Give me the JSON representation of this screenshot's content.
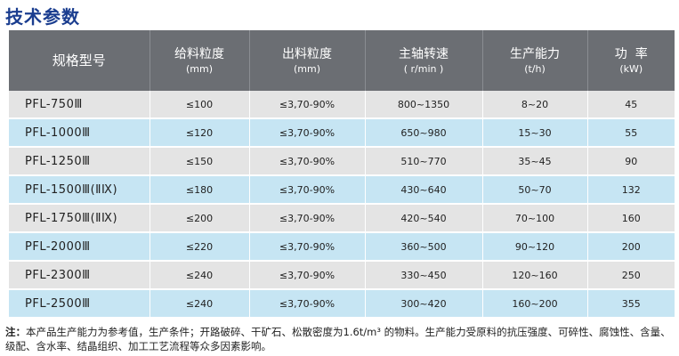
{
  "title": "技术参数",
  "table": {
    "headers": [
      {
        "label": "规格型号",
        "unit": ""
      },
      {
        "label": "给料粒度",
        "unit": "(mm)"
      },
      {
        "label": "出料粒度",
        "unit": "(mm)"
      },
      {
        "label": "主轴转速",
        "unit": "( r/min )"
      },
      {
        "label": "生产能力",
        "unit": "(t/h)"
      },
      {
        "label": "功  率",
        "unit": "(kW)"
      }
    ],
    "rows": [
      [
        "PFL-750Ⅲ",
        "≤100",
        "≤3,70-90%",
        "800~1350",
        "8~20",
        "45"
      ],
      [
        "PFL-1000Ⅲ",
        "≤120",
        "≤3,70-90%",
        "650~980",
        "15~30",
        "55"
      ],
      [
        "PFL-1250Ⅲ",
        "≤150",
        "≤3,70-90%",
        "510~770",
        "35~45",
        "90"
      ],
      [
        "PFL-1500Ⅲ(ⅡⅨ)",
        "≤180",
        "≤3,70-90%",
        "430~640",
        "50~70",
        "132"
      ],
      [
        "PFL-1750Ⅲ(ⅡⅨ)",
        "≤200",
        "≤3,70-90%",
        "420~540",
        "70~100",
        "160"
      ],
      [
        "PFL-2000Ⅲ",
        "≤220",
        "≤3,70-90%",
        "360~500",
        "90~120",
        "200"
      ],
      [
        "PFL-2300Ⅲ",
        "≤240",
        "≤3,70-90%",
        "330~450",
        "120~160",
        "250"
      ],
      [
        "PFL-2500Ⅲ",
        "≤240",
        "≤3,70-90%",
        "300~420",
        "160~200",
        "355"
      ]
    ],
    "row_colors": [
      "#e4e4e4",
      "#c6e5f3"
    ]
  },
  "note": {
    "label": "注：",
    "text": "本产品生产能力为参考值，生产条件；开路破碎、干矿石、松散密度为1.6t/m³ 的物料。生产能力受原料的抗压强度、可碎性、腐蚀性、含量、级配、含水率、结晶组织、加工工艺流程等众多因素影响。"
  }
}
